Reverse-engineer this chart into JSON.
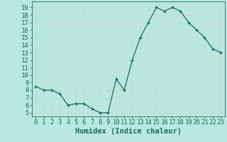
{
  "x": [
    0,
    1,
    2,
    3,
    4,
    5,
    6,
    7,
    8,
    9,
    10,
    11,
    12,
    13,
    14,
    15,
    16,
    17,
    18,
    19,
    20,
    21,
    22,
    23
  ],
  "y": [
    8.5,
    8.0,
    8.0,
    7.5,
    6.0,
    6.2,
    6.2,
    5.5,
    5.0,
    5.0,
    9.5,
    8.0,
    12.0,
    15.0,
    17.0,
    19.0,
    18.5,
    19.0,
    18.5,
    17.0,
    16.0,
    15.0,
    13.5,
    13.0
  ],
  "line_color": "#1a6b5a",
  "marker": "+",
  "bg_color": "#b8e8e0",
  "grid_color": "#c8d8d4",
  "xlabel": "Humidex (Indice chaleur)",
  "ylabel_ticks": [
    5,
    6,
    7,
    8,
    9,
    10,
    11,
    12,
    13,
    14,
    15,
    16,
    17,
    18,
    19
  ],
  "ylim": [
    4.5,
    19.8
  ],
  "xlim": [
    -0.5,
    23.5
  ],
  "tick_color": "#1a6b5a",
  "label_fontsize": 7.5,
  "tick_fontsize": 6.5,
  "linewidth": 0.9,
  "markersize": 3.5
}
